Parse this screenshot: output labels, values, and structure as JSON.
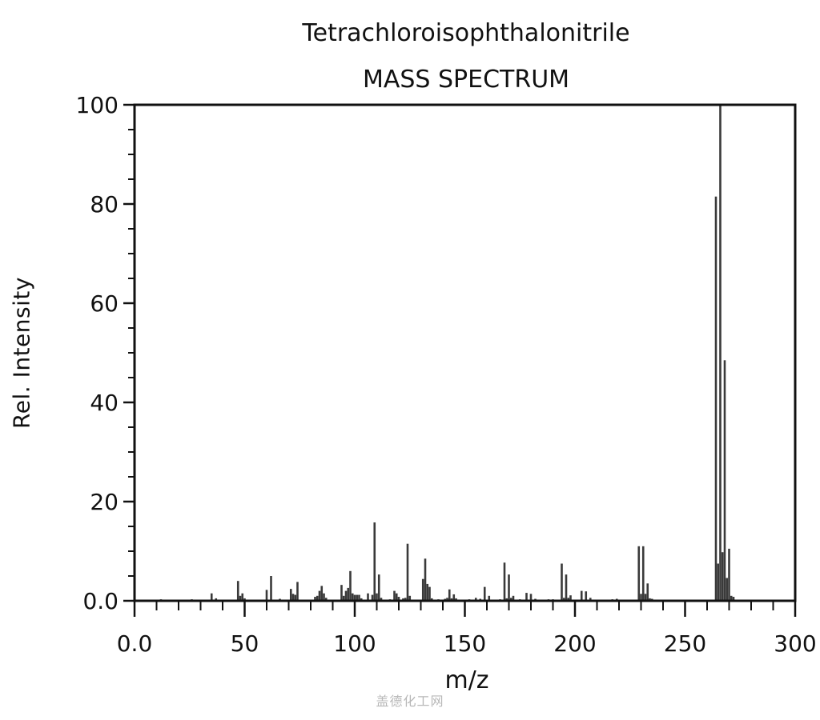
{
  "titles": {
    "compound": "Tetrachloroisophthalonitrile",
    "subtitle": "MASS SPECTRUM"
  },
  "axes": {
    "xlabel": "m/z",
    "ylabel": "Rel. Intensity",
    "x_ticks": [
      "0.0",
      "50",
      "100",
      "150",
      "200",
      "250",
      "300"
    ],
    "y_ticks": [
      "0.0",
      "20",
      "40",
      "60",
      "80",
      "100"
    ]
  },
  "watermark": "盖德化工网",
  "colors": {
    "bar": "#3a3a3a",
    "axis": "#111111",
    "background": "#ffffff"
  },
  "chart_data": {
    "type": "bar",
    "title": "Tetrachloroisophthalonitrile MASS SPECTRUM",
    "xlabel": "m/z",
    "ylabel": "Rel. Intensity",
    "xlim": [
      0,
      300
    ],
    "ylim": [
      0,
      100
    ],
    "grid": false,
    "legend": null,
    "x_ticks": [
      0,
      50,
      100,
      150,
      200,
      250,
      300
    ],
    "y_ticks": [
      0,
      20,
      40,
      60,
      80,
      100
    ],
    "peaks": [
      {
        "mz": 12,
        "intensity": 0.3
      },
      {
        "mz": 26,
        "intensity": 0.3
      },
      {
        "mz": 35,
        "intensity": 1.5
      },
      {
        "mz": 37,
        "intensity": 0.5
      },
      {
        "mz": 47,
        "intensity": 4.0
      },
      {
        "mz": 48,
        "intensity": 1.0
      },
      {
        "mz": 49,
        "intensity": 1.5
      },
      {
        "mz": 50,
        "intensity": 0.5
      },
      {
        "mz": 60,
        "intensity": 2.2
      },
      {
        "mz": 62,
        "intensity": 5.0
      },
      {
        "mz": 66,
        "intensity": 0.4
      },
      {
        "mz": 71,
        "intensity": 2.4
      },
      {
        "mz": 72,
        "intensity": 1.4
      },
      {
        "mz": 73,
        "intensity": 1.2
      },
      {
        "mz": 74,
        "intensity": 3.8
      },
      {
        "mz": 82,
        "intensity": 0.8
      },
      {
        "mz": 83,
        "intensity": 1.0
      },
      {
        "mz": 84,
        "intensity": 2.0
      },
      {
        "mz": 85,
        "intensity": 3.0
      },
      {
        "mz": 86,
        "intensity": 1.5
      },
      {
        "mz": 87,
        "intensity": 0.6
      },
      {
        "mz": 94,
        "intensity": 3.2
      },
      {
        "mz": 95,
        "intensity": 1.0
      },
      {
        "mz": 96,
        "intensity": 2.0
      },
      {
        "mz": 97,
        "intensity": 2.6
      },
      {
        "mz": 98,
        "intensity": 6.0
      },
      {
        "mz": 99,
        "intensity": 1.5
      },
      {
        "mz": 100,
        "intensity": 1.2
      },
      {
        "mz": 101,
        "intensity": 1.2
      },
      {
        "mz": 102,
        "intensity": 1.2
      },
      {
        "mz": 103,
        "intensity": 0.5
      },
      {
        "mz": 106,
        "intensity": 1.5
      },
      {
        "mz": 108,
        "intensity": 1.2
      },
      {
        "mz": 109,
        "intensity": 15.8
      },
      {
        "mz": 110,
        "intensity": 1.5
      },
      {
        "mz": 111,
        "intensity": 5.3
      },
      {
        "mz": 112,
        "intensity": 0.6
      },
      {
        "mz": 116,
        "intensity": 0.3
      },
      {
        "mz": 118,
        "intensity": 2.0
      },
      {
        "mz": 119,
        "intensity": 1.5
      },
      {
        "mz": 120,
        "intensity": 0.8
      },
      {
        "mz": 122,
        "intensity": 0.5
      },
      {
        "mz": 123,
        "intensity": 0.6
      },
      {
        "mz": 124,
        "intensity": 11.5
      },
      {
        "mz": 125,
        "intensity": 1.0
      },
      {
        "mz": 131,
        "intensity": 4.4
      },
      {
        "mz": 132,
        "intensity": 8.5
      },
      {
        "mz": 133,
        "intensity": 3.4
      },
      {
        "mz": 134,
        "intensity": 2.8
      },
      {
        "mz": 135,
        "intensity": 0.5
      },
      {
        "mz": 138,
        "intensity": 0.3
      },
      {
        "mz": 141,
        "intensity": 0.4
      },
      {
        "mz": 142,
        "intensity": 0.6
      },
      {
        "mz": 143,
        "intensity": 2.3
      },
      {
        "mz": 144,
        "intensity": 0.5
      },
      {
        "mz": 145,
        "intensity": 1.3
      },
      {
        "mz": 146,
        "intensity": 0.5
      },
      {
        "mz": 152,
        "intensity": 0.3
      },
      {
        "mz": 155,
        "intensity": 0.6
      },
      {
        "mz": 157,
        "intensity": 0.4
      },
      {
        "mz": 159,
        "intensity": 2.8
      },
      {
        "mz": 161,
        "intensity": 1.0
      },
      {
        "mz": 166,
        "intensity": 0.3
      },
      {
        "mz": 168,
        "intensity": 7.7
      },
      {
        "mz": 169,
        "intensity": 0.5
      },
      {
        "mz": 170,
        "intensity": 5.3
      },
      {
        "mz": 171,
        "intensity": 0.6
      },
      {
        "mz": 172,
        "intensity": 1.0
      },
      {
        "mz": 175,
        "intensity": 0.3
      },
      {
        "mz": 178,
        "intensity": 1.6
      },
      {
        "mz": 180,
        "intensity": 1.4
      },
      {
        "mz": 182,
        "intensity": 0.4
      },
      {
        "mz": 188,
        "intensity": 0.3
      },
      {
        "mz": 190,
        "intensity": 0.3
      },
      {
        "mz": 194,
        "intensity": 7.5
      },
      {
        "mz": 195,
        "intensity": 0.6
      },
      {
        "mz": 196,
        "intensity": 5.3
      },
      {
        "mz": 197,
        "intensity": 0.6
      },
      {
        "mz": 198,
        "intensity": 1.1
      },
      {
        "mz": 203,
        "intensity": 2.0
      },
      {
        "mz": 205,
        "intensity": 1.9
      },
      {
        "mz": 207,
        "intensity": 0.6
      },
      {
        "mz": 217,
        "intensity": 0.3
      },
      {
        "mz": 219,
        "intensity": 0.4
      },
      {
        "mz": 229,
        "intensity": 11.0
      },
      {
        "mz": 230,
        "intensity": 1.4
      },
      {
        "mz": 231,
        "intensity": 11.0
      },
      {
        "mz": 232,
        "intensity": 1.4
      },
      {
        "mz": 233,
        "intensity": 3.5
      },
      {
        "mz": 234,
        "intensity": 0.5
      },
      {
        "mz": 235,
        "intensity": 0.4
      },
      {
        "mz": 264,
        "intensity": 81.5
      },
      {
        "mz": 265,
        "intensity": 7.5
      },
      {
        "mz": 266,
        "intensity": 100.0
      },
      {
        "mz": 267,
        "intensity": 9.8
      },
      {
        "mz": 268,
        "intensity": 48.5
      },
      {
        "mz": 269,
        "intensity": 4.6
      },
      {
        "mz": 270,
        "intensity": 10.5
      },
      {
        "mz": 271,
        "intensity": 1.0
      },
      {
        "mz": 272,
        "intensity": 0.8
      }
    ],
    "annotations": []
  }
}
